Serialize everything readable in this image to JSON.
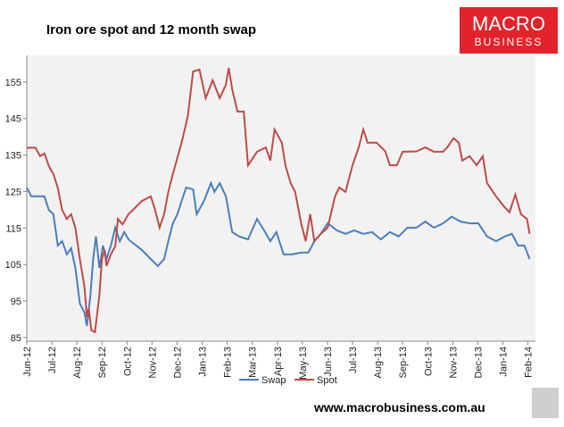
{
  "chart_data": {
    "type": "line",
    "title": "Iron ore spot and 12 month swap",
    "xlim": [
      0,
      20.3
    ],
    "xticks": [
      {
        "value": 0,
        "label": "Jun-12"
      },
      {
        "value": 1,
        "label": "Jul-12"
      },
      {
        "value": 2,
        "label": "Aug-12"
      },
      {
        "value": 3,
        "label": "Sep-12"
      },
      {
        "value": 4,
        "label": "Oct-12"
      },
      {
        "value": 5,
        "label": "Nov-12"
      },
      {
        "value": 6,
        "label": "Dec-12"
      },
      {
        "value": 7,
        "label": "Jan-13"
      },
      {
        "value": 8,
        "label": "Feb-13"
      },
      {
        "value": 9,
        "label": "Mar-13"
      },
      {
        "value": 10,
        "label": "Apr-13"
      },
      {
        "value": 11,
        "label": "May-13"
      },
      {
        "value": 12,
        "label": "Jun-13"
      },
      {
        "value": 13,
        "label": "Jul-13"
      },
      {
        "value": 14,
        "label": "Aug-13"
      },
      {
        "value": 15,
        "label": "Sep-13"
      },
      {
        "value": 16,
        "label": "Oct-13"
      },
      {
        "value": 17,
        "label": "Nov-13"
      },
      {
        "value": 18,
        "label": "Dec-13"
      },
      {
        "value": 19,
        "label": "Jan-14"
      },
      {
        "value": 20,
        "label": "Feb-14"
      }
    ],
    "ylim": [
      84,
      162.3
    ],
    "yticks": [
      85,
      95,
      105,
      115,
      125,
      135,
      145,
      155
    ],
    "grid": false,
    "legend": "bottom",
    "series": [
      {
        "name": "Swap",
        "color": "#4a7ebb",
        "x": [
          0,
          0.18,
          0.7,
          0.88,
          1.06,
          1.24,
          1.41,
          1.6,
          1.77,
          1.94,
          2.12,
          2.3,
          2.4,
          2.54,
          2.65,
          2.76,
          2.9,
          3.04,
          3.18,
          3.36,
          3.53,
          3.71,
          3.89,
          4.06,
          4.24,
          4.59,
          4.95,
          5.23,
          5.48,
          5.65,
          5.83,
          6.01,
          6.18,
          6.36,
          6.64,
          6.78,
          7.07,
          7.35,
          7.49,
          7.7,
          7.95,
          8.2,
          8.48,
          8.83,
          9.19,
          9.47,
          9.72,
          9.96,
          10.25,
          10.6,
          10.95,
          11.24,
          11.48,
          11.73,
          12.01,
          12.37,
          12.72,
          13.07,
          13.43,
          13.78,
          14.13,
          14.49,
          14.84,
          15.19,
          15.55,
          15.9,
          16.25,
          16.61,
          16.96,
          17.31,
          17.67,
          18.02,
          18.37,
          18.73,
          19.08,
          19.36,
          19.61,
          19.86,
          20.07
        ],
        "values": [
          126.1,
          123.7,
          123.7,
          120,
          118.8,
          110.2,
          111.4,
          107.8,
          109.5,
          104,
          94.3,
          91.9,
          88.2,
          96.7,
          106.5,
          112.7,
          104.1,
          110.2,
          106.5,
          110.2,
          115.1,
          111.4,
          113.9,
          111.9,
          110.9,
          109,
          106.5,
          104.6,
          106.5,
          111.4,
          116.3,
          118.8,
          122.4,
          126.1,
          125.6,
          118.8,
          122.4,
          127.3,
          124.9,
          127.3,
          123.7,
          113.9,
          112.7,
          111.9,
          117.5,
          114.4,
          111.4,
          113.9,
          107.8,
          107.8,
          108.3,
          108.3,
          111.4,
          113.4,
          116.3,
          114.4,
          113.4,
          114.4,
          113.4,
          113.9,
          111.9,
          113.9,
          112.7,
          115.1,
          115.1,
          116.8,
          115.1,
          116.3,
          118.1,
          116.8,
          116.3,
          116.3,
          112.7,
          111.4,
          112.7,
          113.4,
          110.2,
          110.2,
          106.5
        ]
      },
      {
        "name": "Spot",
        "color": "#be4b48",
        "x": [
          0,
          0.35,
          0.53,
          0.71,
          0.88,
          1.06,
          1.24,
          1.41,
          1.6,
          1.77,
          1.94,
          2.12,
          2.3,
          2.4,
          2.47,
          2.58,
          2.72,
          2.9,
          3.0,
          3.11,
          3.18,
          3.36,
          3.53,
          3.64,
          3.82,
          4.06,
          4.24,
          4.59,
          4.95,
          5.12,
          5.3,
          5.48,
          5.65,
          5.83,
          6.18,
          6.43,
          6.64,
          6.89,
          7.14,
          7.42,
          7.7,
          7.95,
          8.06,
          8.2,
          8.41,
          8.66,
          8.83,
          9.19,
          9.54,
          9.72,
          9.89,
          10.18,
          10.32,
          10.53,
          10.71,
          10.95,
          11.13,
          11.31,
          11.48,
          11.73,
          12.01,
          12.3,
          12.47,
          12.72,
          13.0,
          13.25,
          13.43,
          13.6,
          13.96,
          14.31,
          14.49,
          14.77,
          15.0,
          15.55,
          15.9,
          16.25,
          16.61,
          16.78,
          17.03,
          17.24,
          17.38,
          17.67,
          17.95,
          18.2,
          18.37,
          18.73,
          19.01,
          19.26,
          19.5,
          19.72,
          19.96,
          20.07
        ],
        "values": [
          137,
          137,
          134.7,
          135.4,
          132,
          129.8,
          126,
          120,
          117.5,
          118.8,
          115,
          106.5,
          99,
          90.6,
          93,
          87,
          86.5,
          96.7,
          106.5,
          109,
          104.6,
          107.8,
          110,
          117.5,
          116,
          118.8,
          120,
          122.4,
          123.7,
          120,
          115.1,
          118.8,
          124.9,
          129.8,
          138.4,
          145.7,
          157.9,
          158.4,
          150.6,
          155.5,
          150.6,
          154.3,
          158.9,
          153,
          146.9,
          146.9,
          132.2,
          135.9,
          137.1,
          133.5,
          142,
          138.4,
          132.2,
          127.3,
          124.9,
          116.3,
          111.4,
          118.8,
          111.4,
          113.4,
          115.1,
          123.7,
          126.1,
          124.9,
          132.2,
          137.1,
          142,
          138.4,
          138.4,
          136,
          132.2,
          132.2,
          135.9,
          136,
          137.1,
          135.9,
          135.9,
          137.1,
          139.6,
          138.4,
          133.5,
          134.7,
          132.2,
          134.7,
          127.3,
          123.7,
          121.2,
          119.3,
          124.2,
          118.8,
          117.5,
          113.4
        ]
      }
    ]
  },
  "logo": {
    "line1": "MACRO",
    "line2": "BUSINESS"
  },
  "footer": "www.macrobusiness.com.au"
}
